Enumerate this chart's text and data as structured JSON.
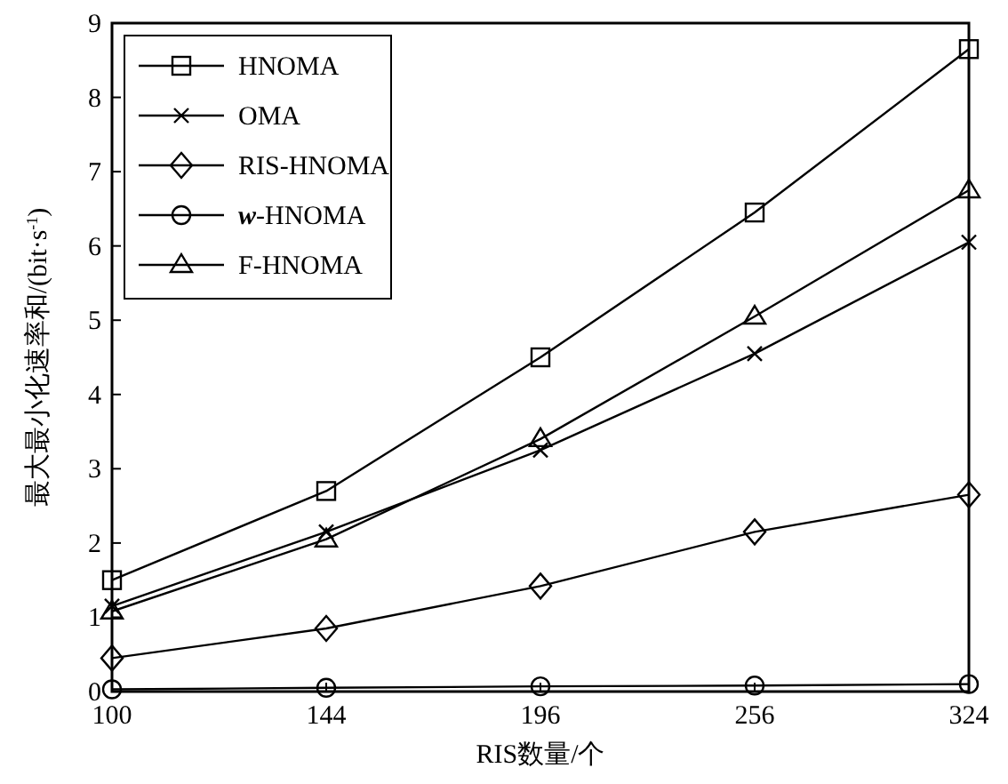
{
  "chart_data": {
    "type": "line",
    "xlabel": "RIS数量/个",
    "ylabel": "最大最小化速率和/(bit·s$^{-1}$)",
    "categories": [
      "100",
      "144",
      "196",
      "256",
      "324"
    ],
    "ylim": [
      0,
      9
    ],
    "yticks": [
      0,
      1,
      2,
      3,
      4,
      5,
      6,
      7,
      8,
      9
    ],
    "grid": false,
    "legend": "top left",
    "series": [
      {
        "name": "HNOMA",
        "color": "#000000",
        "marker": "square",
        "values": [
          1.5,
          2.7,
          4.5,
          6.45,
          8.65
        ]
      },
      {
        "name": "OMA",
        "color": "#000000",
        "marker": "cross",
        "values": [
          1.15,
          2.15,
          3.25,
          4.55,
          6.05
        ]
      },
      {
        "name": "RIS-HNOMA",
        "color": "#000000",
        "marker": "diamond",
        "values": [
          0.45,
          0.85,
          1.42,
          2.15,
          2.65
        ]
      },
      {
        "name": "*w*-HNOMA",
        "color": "#000000",
        "marker": "circle",
        "values": [
          0.03,
          0.05,
          0.07,
          0.08,
          0.1
        ]
      },
      {
        "name": "F-HNOMA",
        "color": "#000000",
        "marker": "triangle",
        "values": [
          1.08,
          2.05,
          3.4,
          5.05,
          6.75
        ]
      }
    ]
  }
}
